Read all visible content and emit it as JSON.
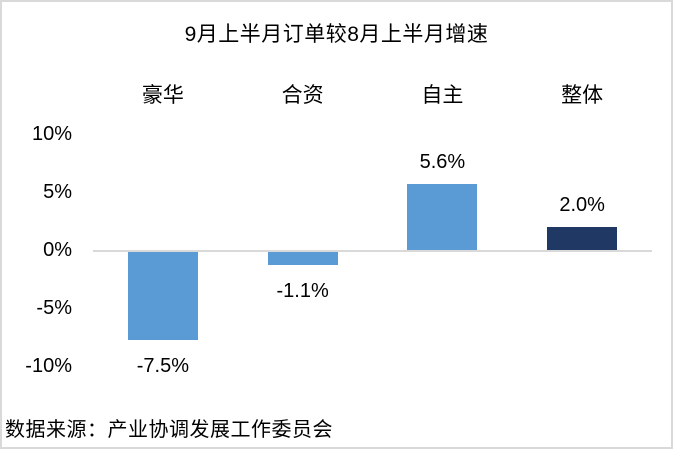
{
  "title": "9月上半月订单较8月上半月增速",
  "source": "数据来源：产业协调发展工作委员会",
  "colors": {
    "bar_light_blue": "#5B9BD5",
    "bar_dark_navy": "#203864",
    "zero_line": "#D9D9D9",
    "frame_border": "#D9D9D9",
    "text": "#000000"
  },
  "chart_data": {
    "type": "bar",
    "title": "9月上半月订单较8月上半月增速",
    "categories": [
      "豪华",
      "合资",
      "自主",
      "整体"
    ],
    "values": [
      -7.5,
      -1.1,
      5.6,
      2.0
    ],
    "data_labels": [
      "-7.5%",
      "-1.1%",
      "5.6%",
      "2.0%"
    ],
    "bar_colors": [
      "#5B9BD5",
      "#5B9BD5",
      "#5B9BD5",
      "#203864"
    ],
    "y_ticks": [
      "10%",
      "5%",
      "0%",
      "-5%",
      "-10%"
    ],
    "y_tick_values": [
      10,
      5,
      0,
      -5,
      -10
    ],
    "ylim": [
      -10,
      10
    ],
    "xlabel": "",
    "ylabel": "",
    "legend": false,
    "grid": "zero-line-only",
    "category_labels_position": "top",
    "source_note": "数据来源：产业协调发展工作委员会"
  }
}
